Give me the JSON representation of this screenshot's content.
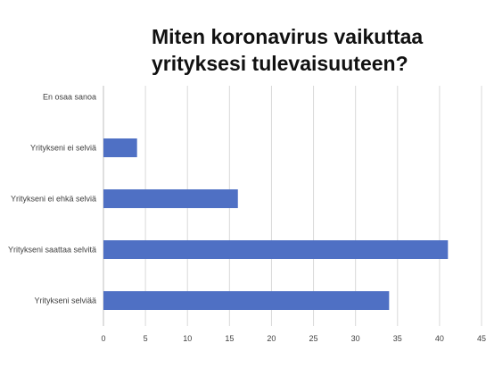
{
  "chart_data": {
    "type": "bar",
    "orientation": "horizontal",
    "title": "Miten koronavirus vaikuttaa yrityksesi tulevaisuuteen?",
    "categories": [
      "En osaa sanoa",
      "Yritykseni ei selviä",
      "Yritykseni ei ehkä  selviä",
      "Yritykseni saattaa selvitä",
      "Yritykseni selviää"
    ],
    "values": [
      0,
      4,
      16,
      41,
      34
    ],
    "xlim": [
      0,
      45
    ],
    "xticks": [
      0,
      5,
      10,
      15,
      20,
      25,
      30,
      35,
      40,
      45
    ],
    "grid": true,
    "bar_color": "#4f70c4"
  }
}
